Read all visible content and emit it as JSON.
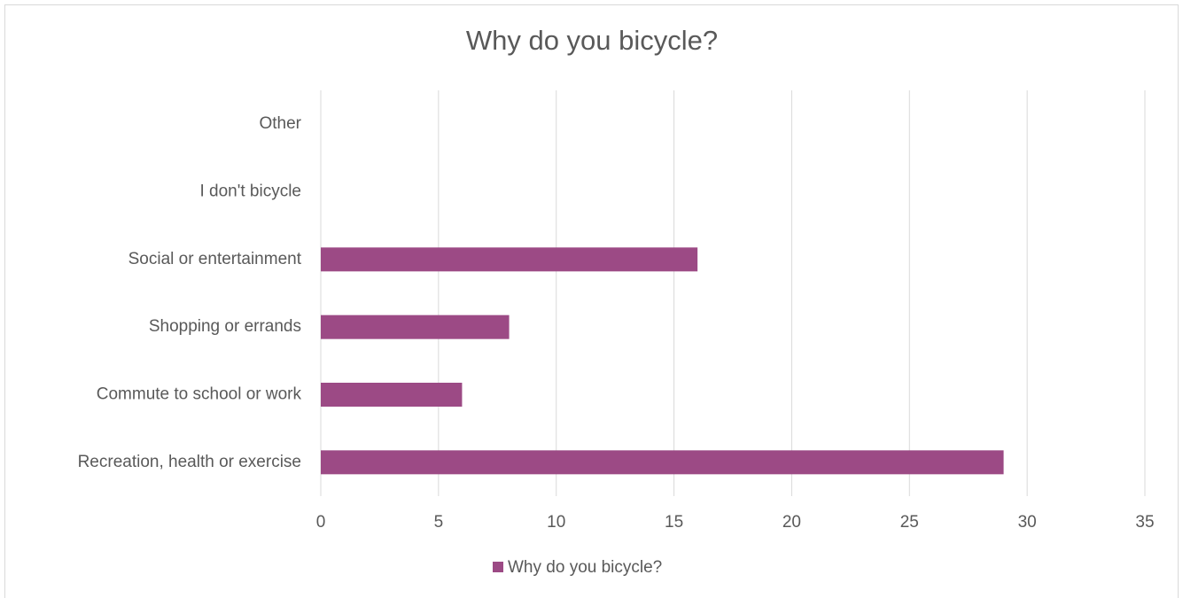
{
  "chart_data": {
    "type": "bar",
    "orientation": "horizontal",
    "title": "Why do you bicycle?",
    "categories": [
      "Recreation, health or exercise",
      "Commute to school or work",
      "Shopping or errands",
      "Social or entertainment",
      "I don't bicycle",
      "Other"
    ],
    "series": [
      {
        "name": "Why do you bicycle?",
        "color": "#9c4a85",
        "values": [
          29,
          6,
          8,
          16,
          0,
          0
        ]
      }
    ],
    "xlim": [
      0,
      35
    ],
    "xticks": [
      0,
      5,
      10,
      15,
      20,
      25,
      30,
      35
    ],
    "grid": true,
    "legend": "bottom"
  }
}
